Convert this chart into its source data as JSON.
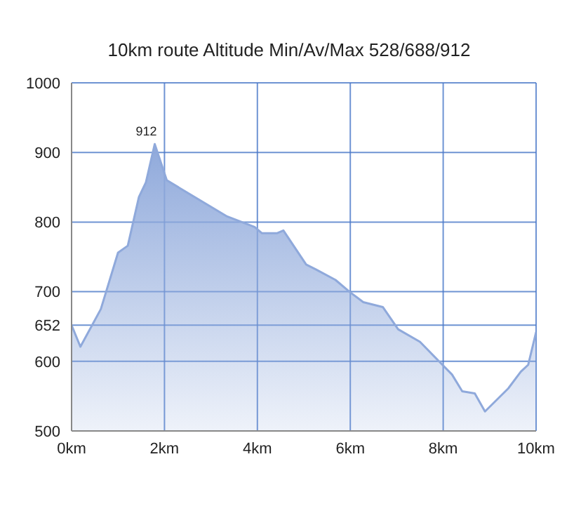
{
  "chart_data": {
    "type": "area",
    "title": "10km route Altitude Min/Av/Max 528/688/912",
    "x": [
      0,
      0.19,
      0.63,
      1.0,
      1.21,
      1.45,
      1.6,
      1.79,
      2.05,
      3.35,
      3.94,
      4.1,
      4.42,
      4.56,
      5.05,
      5.26,
      5.68,
      6.0,
      6.28,
      6.7,
      7.03,
      7.5,
      7.91,
      8.19,
      8.41,
      8.68,
      8.9,
      9.4,
      9.67,
      9.83,
      10
    ],
    "series": [
      {
        "color": "#8fa9db",
        "values": [
          652,
          621,
          675,
          756,
          766,
          836,
          857,
          912,
          860,
          808,
          793,
          784,
          784,
          788,
          739,
          732,
          717,
          699,
          685,
          678,
          646,
          628,
          600,
          581,
          557,
          554,
          528,
          561,
          585,
          595,
          642
        ]
      }
    ],
    "xlim": [
      0,
      10
    ],
    "xticks": [
      {
        "value": 0,
        "label": "0km"
      },
      {
        "value": 2,
        "label": "2km"
      },
      {
        "value": 4,
        "label": "4km"
      },
      {
        "value": 6,
        "label": "6km"
      },
      {
        "value": 8,
        "label": "8km"
      },
      {
        "value": 10,
        "label": "10km"
      }
    ],
    "ylim": [
      500,
      1000
    ],
    "yticks": [
      500,
      600,
      652,
      700,
      800,
      900,
      1000
    ],
    "annotations": [
      {
        "text": "912",
        "x": 1.79,
        "y": 912
      }
    ],
    "grid": true,
    "legend": false
  }
}
